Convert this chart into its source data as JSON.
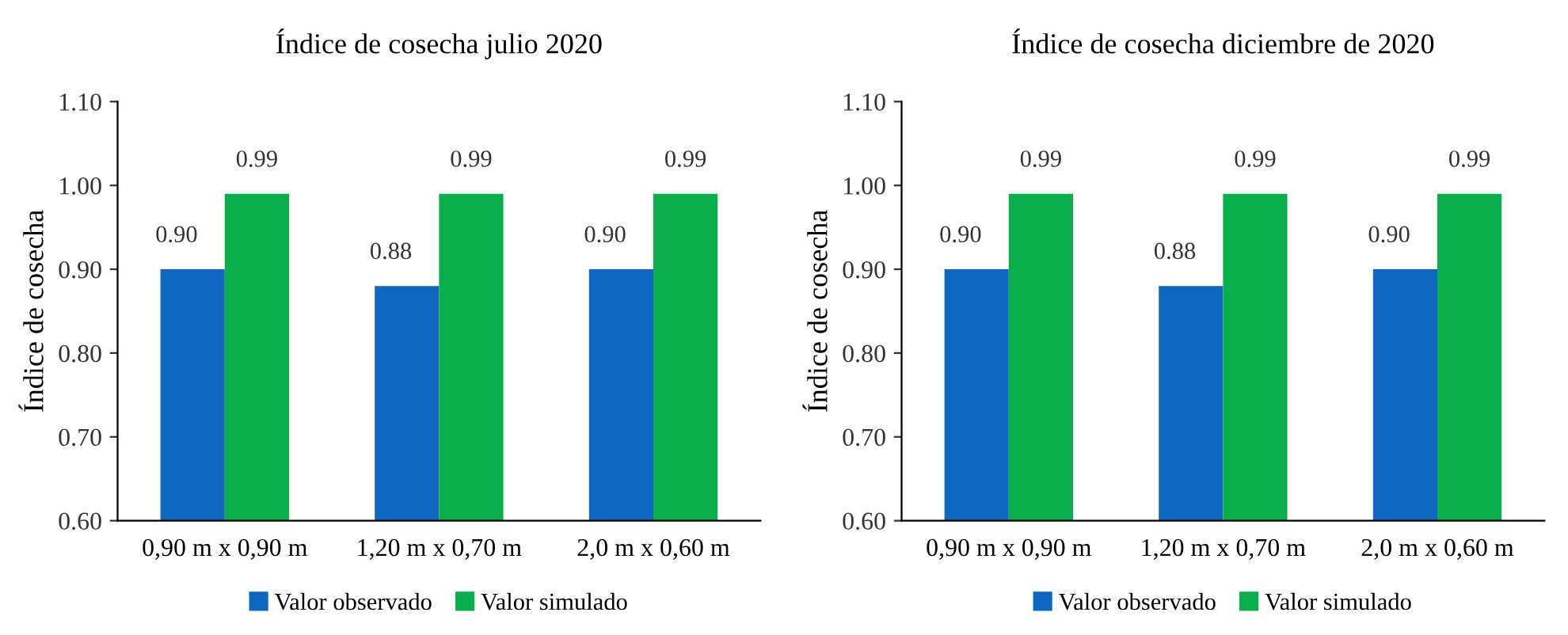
{
  "chart_data": [
    {
      "type": "bar",
      "title": "Índice de cosecha julio 2020",
      "ylabel": "Índice de cosecha",
      "categories": [
        "0,90 m x 0,90 m",
        "1,20 m x 0,70 m",
        "2,0 m x 0,60 m"
      ],
      "series": [
        {
          "name": "Valor observado",
          "color": "#0f67c2",
          "values": [
            0.9,
            0.88,
            0.9
          ],
          "value_labels": [
            "0.90",
            "0.88",
            "0.90"
          ]
        },
        {
          "name": "Valor simulado",
          "color": "#0aae4c",
          "values": [
            0.99,
            0.99,
            0.99
          ],
          "value_labels": [
            "0.99",
            "0.99",
            "0.99"
          ]
        }
      ],
      "ylim": [
        0.6,
        1.1
      ],
      "yticks": [
        "0.60",
        "0.70",
        "0.80",
        "0.90",
        "1.00",
        "1.10"
      ],
      "legend": "bottom",
      "grid": false
    },
    {
      "type": "bar",
      "title": "Índice de cosecha diciembre de 2020",
      "ylabel": "Índice de cosecha",
      "categories": [
        "0,90 m x 0,90 m",
        "1,20 m x 0,70 m",
        "2,0 m x 0,60 m"
      ],
      "series": [
        {
          "name": "Valor observado",
          "color": "#0f67c2",
          "values": [
            0.9,
            0.88,
            0.9
          ],
          "value_labels": [
            "0.90",
            "0.88",
            "0.90"
          ]
        },
        {
          "name": "Valor simulado",
          "color": "#0aae4c",
          "values": [
            0.99,
            0.99,
            0.99
          ],
          "value_labels": [
            "0.99",
            "0.99",
            "0.99"
          ]
        }
      ],
      "ylim": [
        0.6,
        1.1
      ],
      "yticks": [
        "0.60",
        "0.70",
        "0.80",
        "0.90",
        "1.00",
        "1.10"
      ],
      "legend": "bottom",
      "grid": false
    }
  ]
}
